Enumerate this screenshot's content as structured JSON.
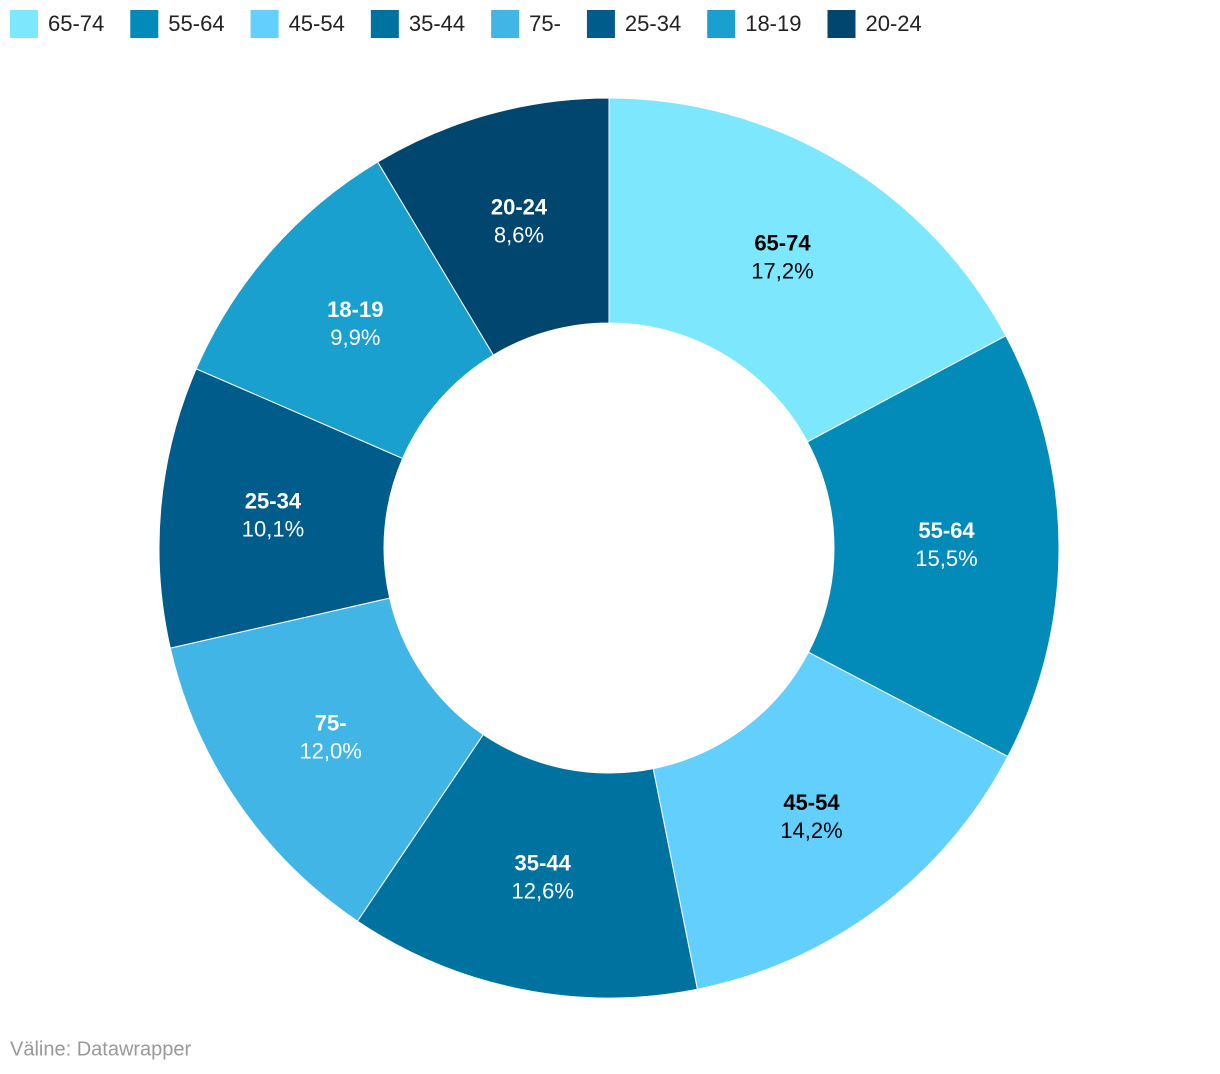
{
  "chart_data": {
    "type": "donut",
    "categories": [
      "65-74",
      "55-64",
      "45-54",
      "35-44",
      "75-",
      "25-34",
      "18-19",
      "20-24"
    ],
    "values": [
      17.2,
      15.5,
      14.2,
      12.6,
      12.0,
      10.1,
      9.9,
      8.6
    ],
    "value_labels": [
      "17,2%",
      "15,5%",
      "14,2%",
      "12,6%",
      "12,0%",
      "10,1%",
      "9,9%",
      "8,6%"
    ],
    "colors": [
      "#7de8fd",
      "#028ab8",
      "#62cffc",
      "#0072a0",
      "#41b6e6",
      "#005c8a",
      "#19a0cf",
      "#00466f"
    ],
    "legend": "top-left",
    "source": "Väline: Datawrapper"
  }
}
